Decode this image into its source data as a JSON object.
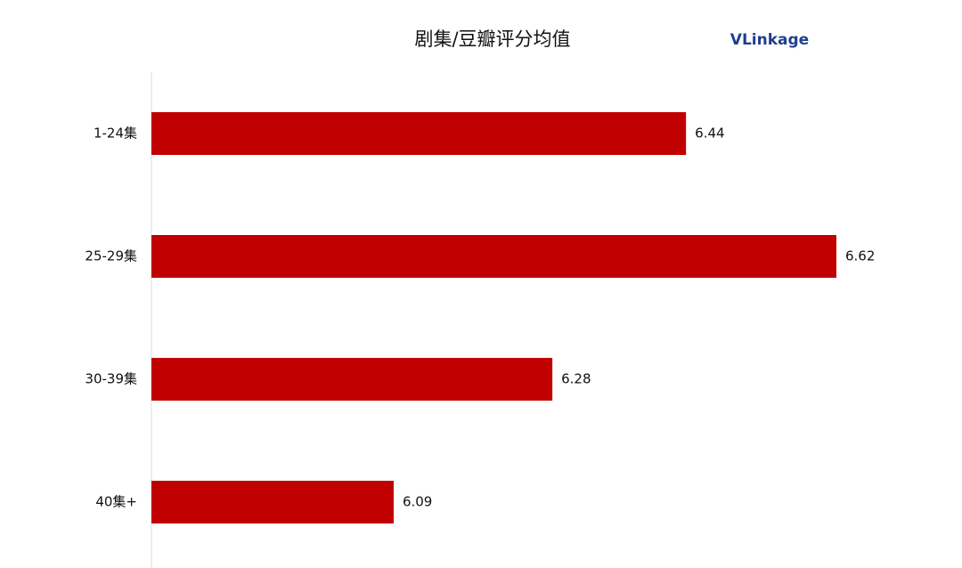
{
  "chart_data": {
    "type": "bar",
    "orientation": "horizontal",
    "title": "剧集/豆瓣评分均值",
    "logo": "VLinkage",
    "categories": [
      "1-24集",
      "25-29集",
      "30-39集",
      "40集+"
    ],
    "values": [
      6.44,
      6.62,
      6.28,
      6.09
    ],
    "color": "#c00000",
    "xlim": [
      5.8,
      6.7
    ],
    "grid": false
  }
}
